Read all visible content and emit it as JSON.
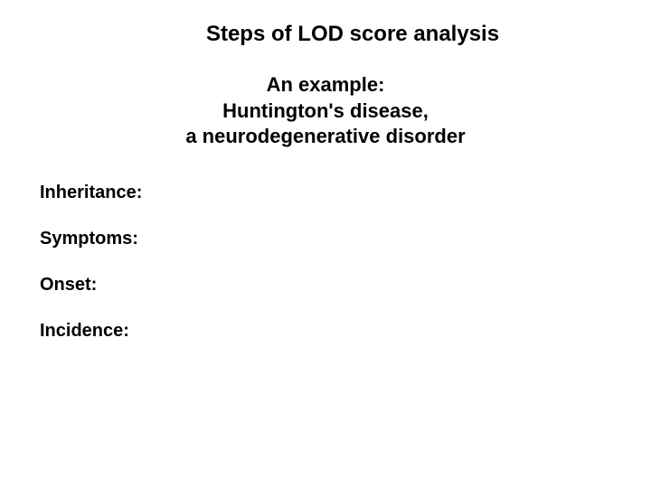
{
  "title": "Steps of LOD score analysis",
  "subtitle_line1": "An example:",
  "subtitle_line2": "Huntington's disease,",
  "subtitle_line3": "a neurodegenerative disorder",
  "labels": {
    "inheritance": "Inheritance:",
    "symptoms": "Symptoms:",
    "onset": "Onset:",
    "incidence": "Incidence:"
  },
  "style": {
    "background_color": "#ffffff",
    "text_color": "#000000",
    "title_fontsize": 24,
    "subtitle_fontsize": 22,
    "label_fontsize": 20,
    "font_family": "Arial"
  }
}
